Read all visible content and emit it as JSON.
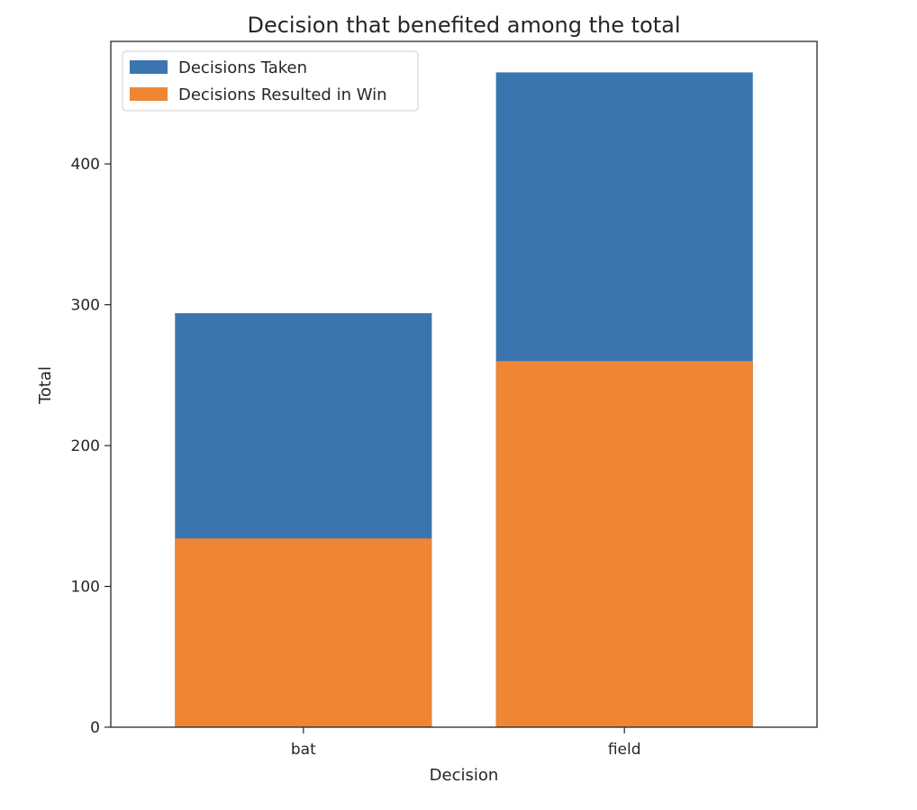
{
  "chart_data": {
    "type": "bar",
    "title": "Decision that benefited among the total",
    "xlabel": "Decision",
    "ylabel": "Total",
    "categories": [
      "bat",
      "field"
    ],
    "series": [
      {
        "name": "Decisions Taken",
        "values": [
          294,
          465
        ],
        "color": "#3a75af"
      },
      {
        "name": "Decisions Resulted in Win",
        "values": [
          134,
          260
        ],
        "color": "#ee8634"
      }
    ],
    "ylim": [
      0,
      487
    ],
    "yticks": [
      0,
      100,
      200,
      300,
      400
    ],
    "grid": false,
    "legend_position": "top-left"
  }
}
